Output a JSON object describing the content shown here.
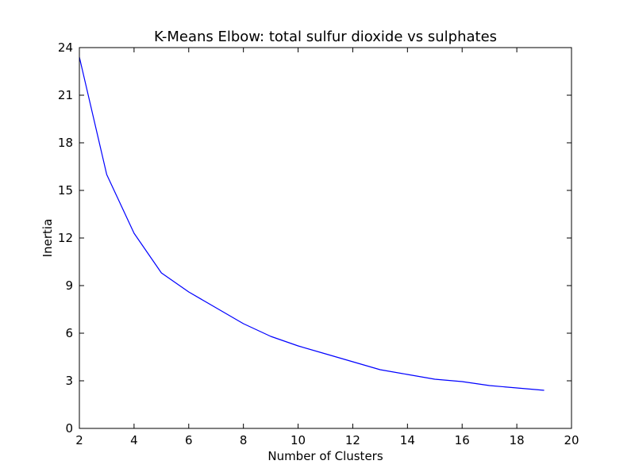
{
  "chart_data": {
    "type": "line",
    "title": "K-Means Elbow: total sulfur dioxide vs sulphates",
    "xlabel": "Number of Clusters",
    "ylabel": "Inertia",
    "xlim": [
      2,
      20
    ],
    "ylim": [
      0,
      24
    ],
    "xticks": [
      "2",
      "4",
      "6",
      "8",
      "10",
      "12",
      "14",
      "16",
      "18",
      "20"
    ],
    "yticks": [
      "0",
      "3",
      "6",
      "9",
      "12",
      "15",
      "18",
      "21",
      "24"
    ],
    "grid": false,
    "series": [
      {
        "color": "#0000ff",
        "x": [
          2,
          3,
          4,
          5,
          6,
          7,
          8,
          9,
          10,
          11,
          12,
          13,
          14,
          15,
          16,
          17,
          18,
          19
        ],
        "y": [
          23.4,
          16.0,
          12.3,
          9.8,
          8.6,
          7.6,
          6.6,
          5.8,
          5.2,
          4.7,
          4.2,
          3.7,
          3.4,
          3.1,
          2.95,
          2.7,
          2.55,
          2.4
        ]
      }
    ]
  }
}
